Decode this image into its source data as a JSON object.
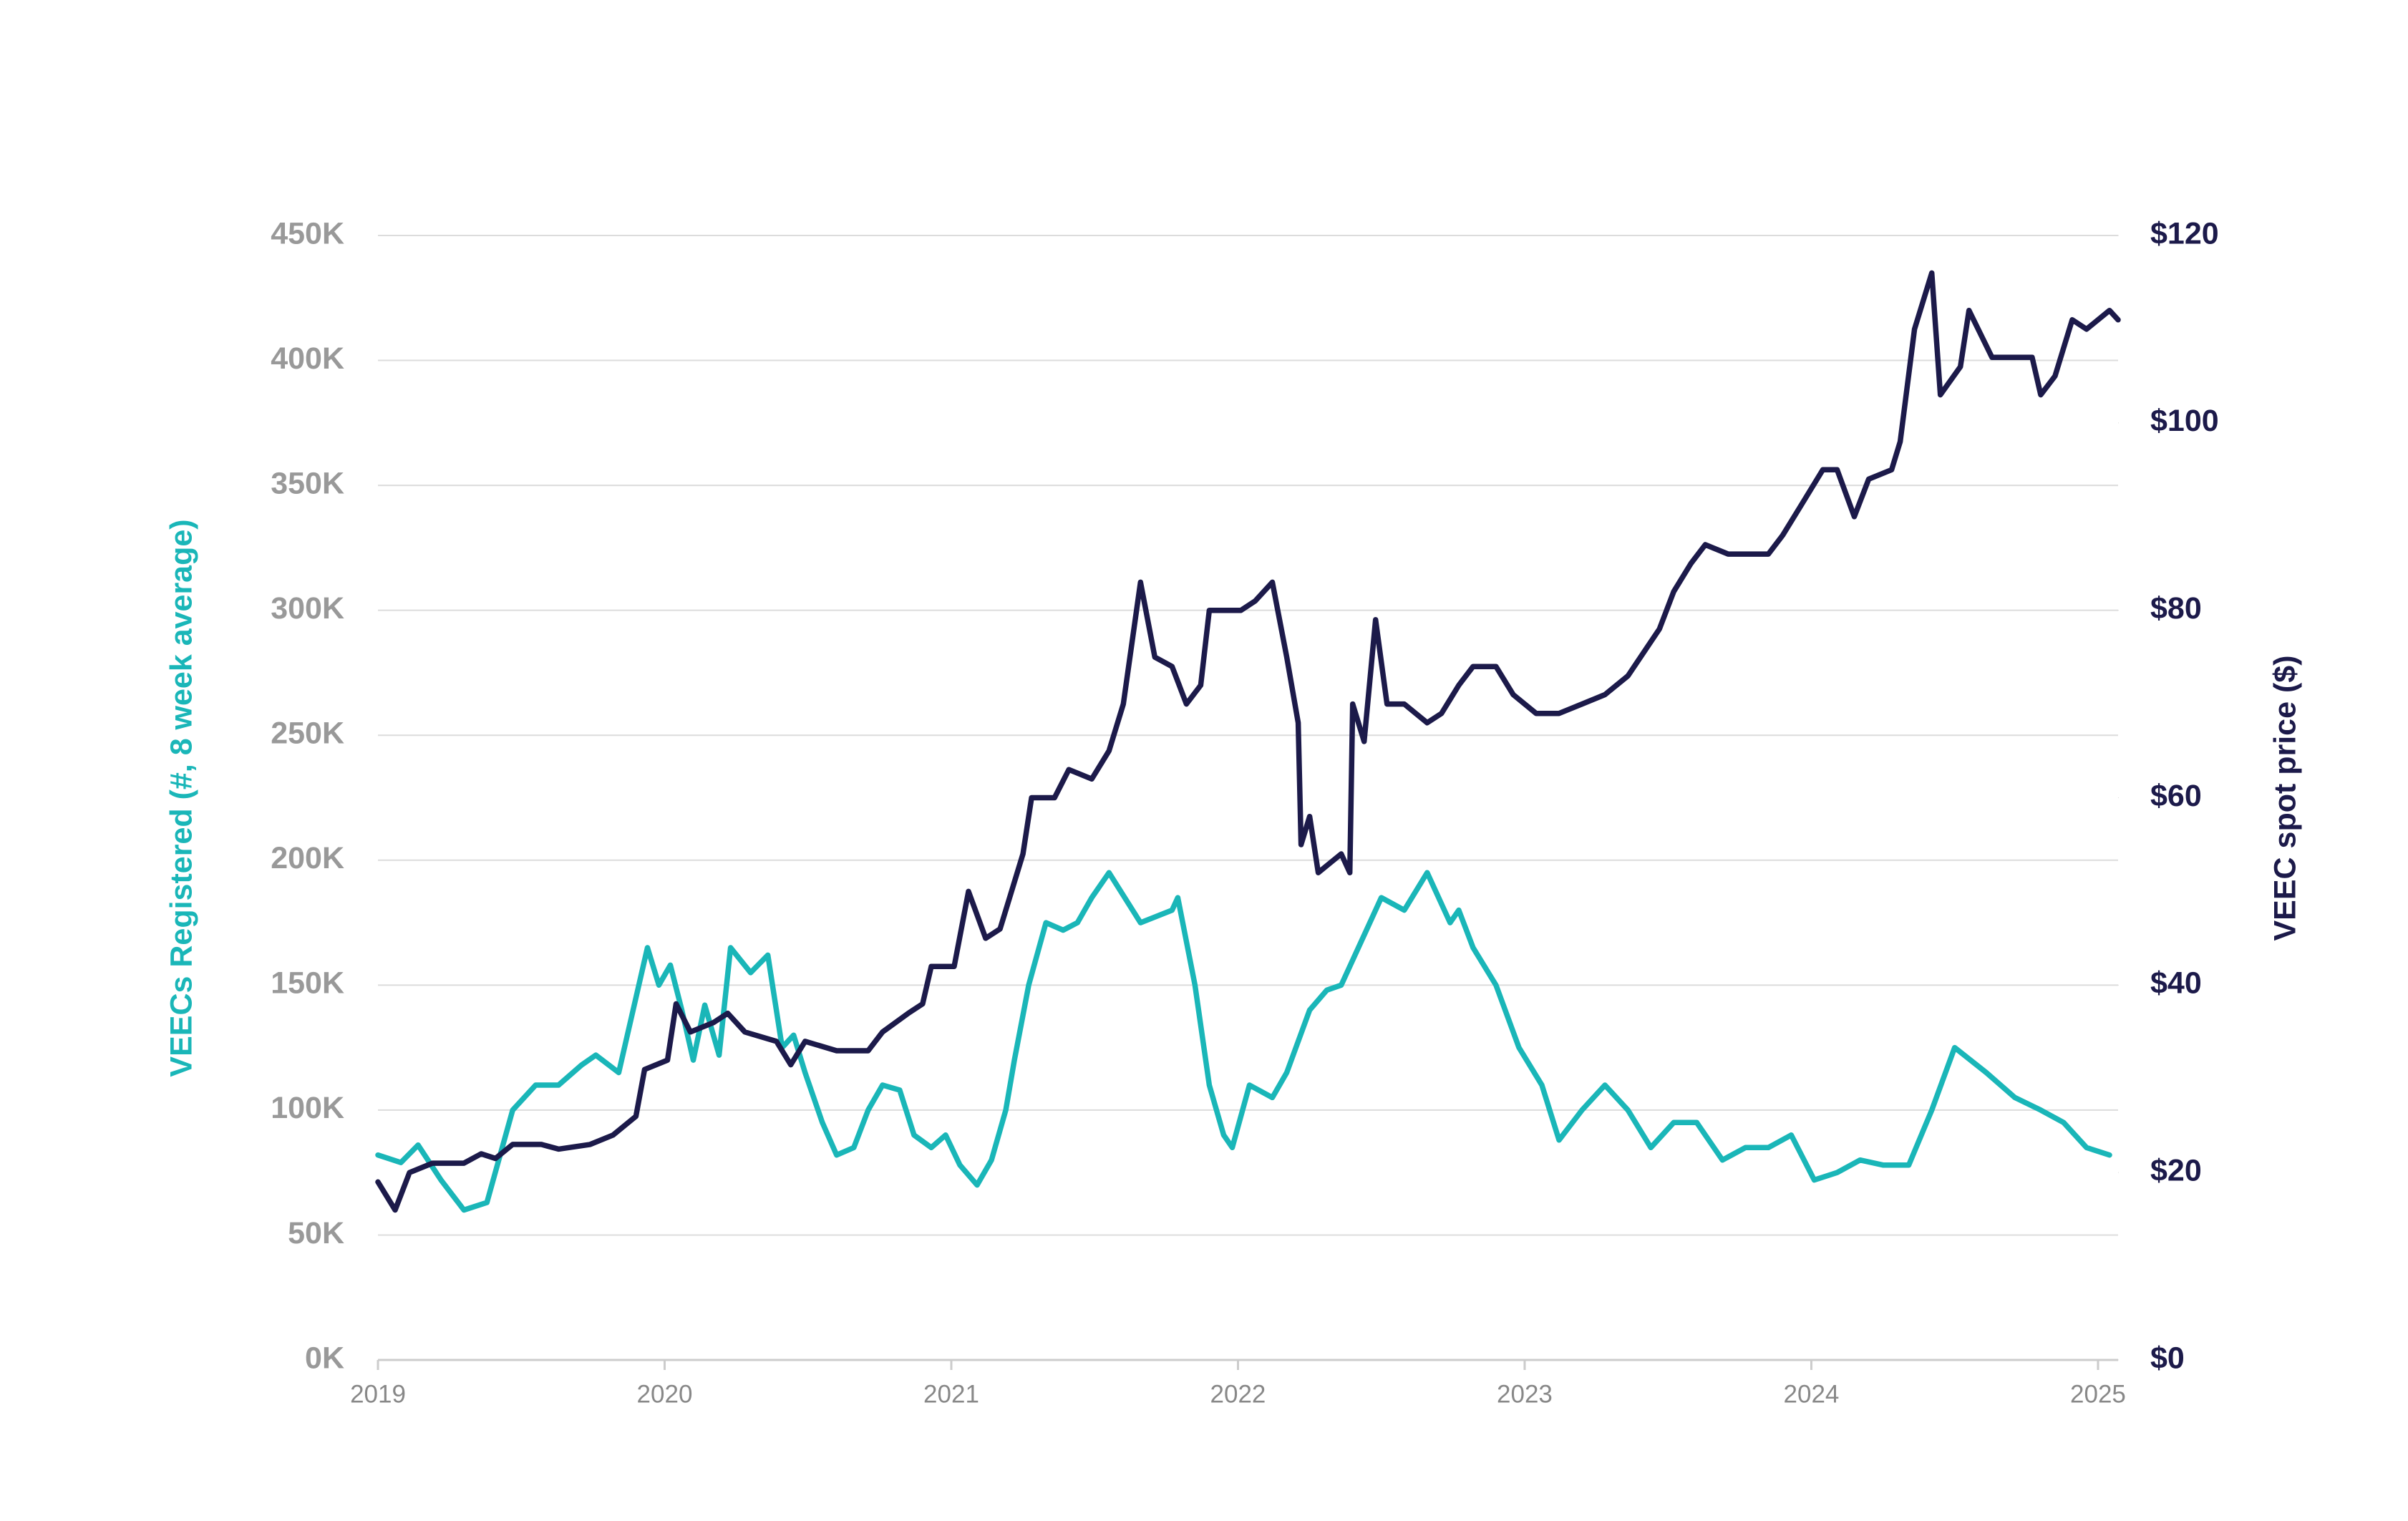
{
  "chart_data": {
    "type": "line",
    "y_label": "VEECs Registered (#, 8 week average)",
    "y2_label": "VEEC spot price ($)",
    "xlim": [
      2019,
      2025.07
    ],
    "xticks": [
      2019,
      2020,
      2021,
      2022,
      2023,
      2024,
      2025
    ],
    "ylim": [
      0,
      450000
    ],
    "yticks": [
      {
        "value": 0,
        "label": "0K"
      },
      {
        "value": 50000,
        "label": "50K"
      },
      {
        "value": 100000,
        "label": "100K"
      },
      {
        "value": 150000,
        "label": "150K"
      },
      {
        "value": 200000,
        "label": "200K"
      },
      {
        "value": 250000,
        "label": "250K"
      },
      {
        "value": 300000,
        "label": "300K"
      },
      {
        "value": 350000,
        "label": "350K"
      },
      {
        "value": 400000,
        "label": "400K"
      },
      {
        "value": 450000,
        "label": "450K"
      }
    ],
    "y2lim": [
      0,
      120
    ],
    "y2ticks": [
      {
        "value": 0,
        "label": "$0"
      },
      {
        "value": 20,
        "label": "$20"
      },
      {
        "value": 40,
        "label": "$40"
      },
      {
        "value": 60,
        "label": "$60"
      },
      {
        "value": 80,
        "label": "$80"
      },
      {
        "value": 100,
        "label": "$100"
      },
      {
        "value": 120,
        "label": "$120"
      }
    ],
    "grid": true,
    "series": [
      {
        "color": "#1ab6b8",
        "axis": "y",
        "x": [
          2019.0,
          2019.08,
          2019.14,
          2019.22,
          2019.3,
          2019.38,
          2019.47,
          2019.55,
          2019.63,
          2019.71,
          2019.76,
          2019.84,
          2019.87,
          2019.94,
          2019.98,
          2020.02,
          2020.06,
          2020.1,
          2020.14,
          2020.19,
          2020.23,
          2020.3,
          2020.36,
          2020.41,
          2020.45,
          2020.49,
          2020.55,
          2020.6,
          2020.66,
          2020.71,
          2020.76,
          2020.82,
          2020.87,
          2020.93,
          2020.98,
          2021.03,
          2021.09,
          2021.14,
          2021.19,
          2021.22,
          2021.27,
          2021.33,
          2021.39,
          2021.44,
          2021.49,
          2021.55,
          2021.66,
          2021.77,
          2021.79,
          2021.85,
          2021.9,
          2021.95,
          2021.98,
          2022.04,
          2022.12,
          2022.17,
          2022.25,
          2022.31,
          2022.36,
          2022.44,
          2022.5,
          2022.58,
          2022.66,
          2022.74,
          2022.77,
          2022.82,
          2022.9,
          2022.98,
          2023.06,
          2023.12,
          2023.2,
          2023.28,
          2023.36,
          2023.44,
          2023.52,
          2023.6,
          2023.69,
          2023.77,
          2023.85,
          2023.93,
          2024.01,
          2024.09,
          2024.17,
          2024.25,
          2024.34,
          2024.42,
          2024.5,
          2024.61,
          2024.71,
          2024.8,
          2024.88,
          2024.96,
          2025.04
        ],
        "values": [
          82000,
          79000,
          86000,
          72000,
          60000,
          63000,
          100000,
          110000,
          110000,
          118000,
          122000,
          115000,
          130000,
          165000,
          150000,
          158000,
          140000,
          120000,
          142000,
          122000,
          165000,
          155000,
          162000,
          125000,
          130000,
          115000,
          95000,
          82000,
          85000,
          100000,
          110000,
          108000,
          90000,
          85000,
          90000,
          78000,
          70000,
          80000,
          100000,
          120000,
          150000,
          175000,
          172000,
          175000,
          185000,
          195000,
          175000,
          180000,
          185000,
          150000,
          110000,
          90000,
          85000,
          110000,
          105000,
          115000,
          140000,
          148000,
          150000,
          170000,
          185000,
          180000,
          195000,
          175000,
          180000,
          165000,
          150000,
          125000,
          110000,
          88000,
          100000,
          110000,
          100000,
          85000,
          95000,
          95000,
          80000,
          85000,
          85000,
          90000,
          72000,
          75000,
          80000,
          78000,
          78000,
          100000,
          125000,
          115000,
          105000,
          100000,
          95000,
          85000,
          82000
        ]
      },
      {
        "color": "#1c1a4a",
        "axis": "y2",
        "x": [
          2019.0,
          2019.06,
          2019.11,
          2019.19,
          2019.3,
          2019.36,
          2019.41,
          2019.47,
          2019.57,
          2019.63,
          2019.74,
          2019.82,
          2019.9,
          2019.93,
          2020.01,
          2020.04,
          2020.09,
          2020.17,
          2020.22,
          2020.28,
          2020.39,
          2020.44,
          2020.49,
          2020.6,
          2020.71,
          2020.76,
          2020.85,
          2020.9,
          2020.93,
          2021.01,
          2021.06,
          2021.12,
          2021.17,
          2021.25,
          2021.28,
          2021.36,
          2021.41,
          2021.49,
          2021.55,
          2021.6,
          2021.66,
          2021.71,
          2021.77,
          2021.82,
          2021.87,
          2021.9,
          2022.01,
          2022.06,
          2022.12,
          2022.17,
          2022.21,
          2022.22,
          2022.25,
          2022.28,
          2022.36,
          2022.39,
          2022.4,
          2022.44,
          2022.48,
          2022.52,
          2022.58,
          2022.66,
          2022.71,
          2022.77,
          2022.82,
          2022.9,
          2022.96,
          2023.04,
          2023.12,
          2023.2,
          2023.28,
          2023.36,
          2023.47,
          2023.52,
          2023.58,
          2023.63,
          2023.71,
          2023.85,
          2023.9,
          2023.96,
          2024.04,
          2024.09,
          2024.15,
          2024.2,
          2024.28,
          2024.31,
          2024.36,
          2024.42,
          2024.45,
          2024.52,
          2024.55,
          2024.63,
          2024.77,
          2024.8,
          2024.85,
          2024.91,
          2024.96,
          2025.04,
          2025.07
        ],
        "values": [
          19,
          16,
          20,
          21,
          21,
          22,
          21.5,
          23,
          23,
          22.5,
          23,
          24,
          26,
          31,
          32,
          38,
          35,
          36,
          37,
          35,
          34,
          31.5,
          34,
          33,
          33,
          35,
          37,
          38,
          42,
          42,
          50,
          45,
          46,
          54,
          60,
          60,
          63,
          62,
          65,
          70,
          83,
          75,
          74,
          70,
          72,
          80,
          80,
          81,
          83,
          75,
          68,
          55,
          58,
          52,
          54,
          52,
          70,
          66,
          79,
          70,
          70,
          68,
          69,
          72,
          74,
          74,
          71,
          69,
          69,
          70,
          71,
          73,
          78,
          82,
          85,
          87,
          86,
          86,
          88,
          91,
          95,
          95,
          90,
          94,
          95,
          98,
          110,
          116,
          103,
          106,
          112,
          107,
          107,
          103,
          105,
          111,
          110,
          112,
          111
        ]
      }
    ]
  }
}
